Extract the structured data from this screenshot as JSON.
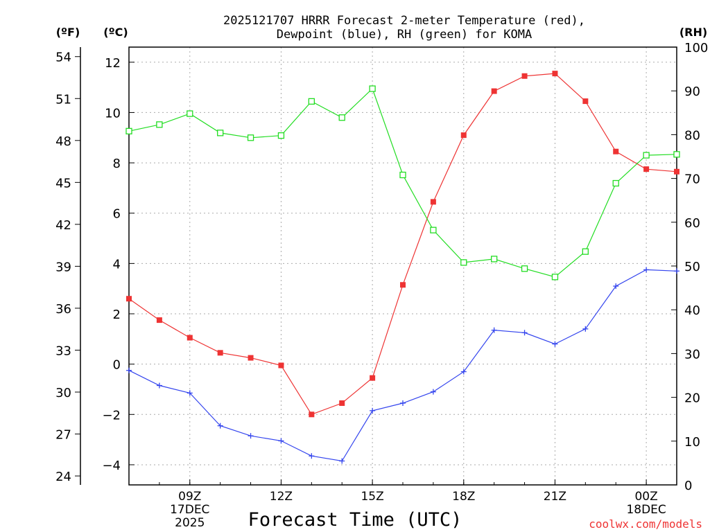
{
  "chart_data": {
    "type": "line",
    "title_line1": "2025121707 HRRR Forecast 2-meter Temperature (red),",
    "title_line2": "Dewpoint (blue), RH (green) for KOMA",
    "xlabel": "Forecast Time (UTC)",
    "credit": "coolwx.com/models",
    "unit_f": "(ºF)",
    "unit_c": "(ºC)",
    "unit_rh": "(RH)",
    "hours": [
      7,
      8,
      9,
      10,
      11,
      12,
      13,
      14,
      15,
      16,
      17,
      18,
      19,
      20,
      21,
      22,
      23,
      24,
      25
    ],
    "x_range": [
      7,
      25
    ],
    "x_ticks": [
      {
        "h": 9,
        "label": "09Z",
        "sub1": "17DEC",
        "sub2": "2025"
      },
      {
        "h": 12,
        "label": "12Z",
        "sub1": "",
        "sub2": ""
      },
      {
        "h": 15,
        "label": "15Z",
        "sub1": "",
        "sub2": ""
      },
      {
        "h": 18,
        "label": "18Z",
        "sub1": "",
        "sub2": ""
      },
      {
        "h": 21,
        "label": "21Z",
        "sub1": "",
        "sub2": ""
      },
      {
        "h": 24,
        "label": "00Z",
        "sub1": "18DEC",
        "sub2": ""
      }
    ],
    "c_range": [
      -4.8,
      12.6
    ],
    "c_ticks": [
      {
        "v": 12,
        "label": "12"
      },
      {
        "v": 10,
        "label": "10"
      },
      {
        "v": 8,
        "label": "8"
      },
      {
        "v": 6,
        "label": "6"
      },
      {
        "v": 4,
        "label": "4"
      },
      {
        "v": 2,
        "label": "2"
      },
      {
        "v": 0,
        "label": "0"
      },
      {
        "v": -2,
        "label": "−2"
      },
      {
        "v": -4,
        "label": "−4"
      }
    ],
    "f_ticks": [
      54,
      51,
      48,
      45,
      42,
      39,
      36,
      33,
      30,
      27,
      24
    ],
    "rh_range": [
      0,
      100
    ],
    "rh_ticks": [
      0,
      10,
      20,
      30,
      40,
      50,
      60,
      70,
      80,
      90,
      100
    ],
    "series": [
      {
        "name": "Temperature",
        "unit": "C",
        "color": "#ee3333",
        "marker": "filled-square",
        "values": [
          2.6,
          1.75,
          1.05,
          0.45,
          0.25,
          -0.05,
          -2.0,
          -1.55,
          -0.55,
          3.15,
          6.45,
          9.1,
          10.85,
          11.45,
          11.55,
          10.45,
          8.45,
          7.75,
          7.65
        ]
      },
      {
        "name": "Dewpoint",
        "unit": "C",
        "color": "#3344ee",
        "marker": "plus",
        "values": [
          -0.25,
          -0.85,
          -1.15,
          -2.45,
          -2.85,
          -3.05,
          -3.65,
          -3.85,
          -1.85,
          -1.55,
          -1.1,
          -0.3,
          1.35,
          1.25,
          0.8,
          1.4,
          3.1,
          3.75,
          3.7
        ]
      },
      {
        "name": "RH",
        "unit": "%",
        "color": "#22dd22",
        "marker": "open-square",
        "values": [
          80.8,
          82.3,
          84.8,
          80.4,
          79.3,
          79.8,
          87.6,
          83.9,
          90.5,
          70.8,
          58.2,
          50.8,
          51.6,
          49.4,
          47.5,
          53.3,
          68.9,
          75.3,
          75.5
        ]
      }
    ]
  }
}
